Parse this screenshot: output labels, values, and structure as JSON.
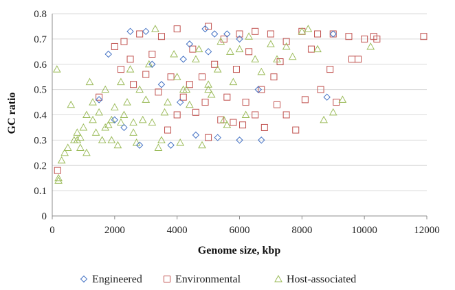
{
  "chart_data": {
    "type": "scatter",
    "title": "",
    "xlabel": "Genome size, kbp",
    "ylabel": "GC ratio",
    "xlim": [
      0,
      12000
    ],
    "ylim": [
      0,
      0.8
    ],
    "x_ticks": [
      "0",
      "2000",
      "4000",
      "6000",
      "8000",
      "10000",
      "12000"
    ],
    "y_ticks": [
      "0",
      "0.1",
      "0.2",
      "0.3",
      "0.4",
      "0.5",
      "0.6",
      "0.7",
      "0.8"
    ],
    "grid": "horizontal",
    "legend_position": "bottom",
    "series": [
      {
        "name": "Engineered",
        "marker": "diamond",
        "color": "#4472C4",
        "points": [
          [
            1800,
            0.64
          ],
          [
            2500,
            0.73
          ],
          [
            3000,
            0.73
          ],
          [
            4200,
            0.62
          ],
          [
            4900,
            0.74
          ],
          [
            5000,
            0.65
          ],
          [
            5200,
            0.72
          ],
          [
            5600,
            0.72
          ],
          [
            6000,
            0.7
          ],
          [
            6600,
            0.5
          ],
          [
            6700,
            0.3
          ],
          [
            6000,
            0.3
          ],
          [
            5300,
            0.31
          ],
          [
            4600,
            0.32
          ],
          [
            3800,
            0.28
          ],
          [
            2800,
            0.28
          ],
          [
            2000,
            0.38
          ],
          [
            1500,
            0.46
          ],
          [
            3200,
            0.6
          ],
          [
            4100,
            0.45
          ],
          [
            8800,
            0.47
          ],
          [
            9000,
            0.72
          ],
          [
            2300,
            0.35
          ],
          [
            3500,
            0.52
          ],
          [
            4400,
            0.68
          ]
        ]
      },
      {
        "name": "Environmental",
        "marker": "square",
        "color": "#C0504D",
        "points": [
          [
            170,
            0.18
          ],
          [
            1500,
            0.47
          ],
          [
            2000,
            0.67
          ],
          [
            2300,
            0.69
          ],
          [
            2800,
            0.72
          ],
          [
            3500,
            0.71
          ],
          [
            4000,
            0.74
          ],
          [
            4500,
            0.66
          ],
          [
            5000,
            0.75
          ],
          [
            5500,
            0.7
          ],
          [
            6000,
            0.72
          ],
          [
            6500,
            0.73
          ],
          [
            7000,
            0.72
          ],
          [
            7500,
            0.69
          ],
          [
            8000,
            0.73
          ],
          [
            8500,
            0.72
          ],
          [
            9000,
            0.72
          ],
          [
            9500,
            0.71
          ],
          [
            9800,
            0.62
          ],
          [
            10000,
            0.7
          ],
          [
            10300,
            0.71
          ],
          [
            11900,
            0.71
          ],
          [
            9100,
            0.45
          ],
          [
            8600,
            0.5
          ],
          [
            7800,
            0.34
          ],
          [
            7500,
            0.4
          ],
          [
            7200,
            0.44
          ],
          [
            6800,
            0.35
          ],
          [
            6500,
            0.4
          ],
          [
            6200,
            0.45
          ],
          [
            5800,
            0.37
          ],
          [
            5400,
            0.38
          ],
          [
            5000,
            0.31
          ],
          [
            4600,
            0.41
          ],
          [
            4200,
            0.47
          ],
          [
            3800,
            0.55
          ],
          [
            3400,
            0.49
          ],
          [
            3000,
            0.56
          ],
          [
            2600,
            0.52
          ],
          [
            2200,
            0.58
          ],
          [
            4800,
            0.55
          ],
          [
            5200,
            0.6
          ],
          [
            6300,
            0.65
          ],
          [
            7100,
            0.55
          ],
          [
            8100,
            0.46
          ],
          [
            8900,
            0.58
          ],
          [
            9600,
            0.62
          ],
          [
            10400,
            0.7
          ],
          [
            4000,
            0.4
          ],
          [
            5600,
            0.47
          ],
          [
            6700,
            0.5
          ],
          [
            3200,
            0.64
          ],
          [
            2500,
            0.62
          ],
          [
            4400,
            0.52
          ],
          [
            5900,
            0.58
          ],
          [
            7300,
            0.61
          ],
          [
            8300,
            0.66
          ],
          [
            3700,
            0.34
          ],
          [
            4900,
            0.45
          ],
          [
            6100,
            0.36
          ]
        ]
      },
      {
        "name": "Host-associated",
        "marker": "triangle",
        "color": "#9BBB59",
        "points": [
          [
            150,
            0.58
          ],
          [
            200,
            0.15
          ],
          [
            200,
            0.14
          ],
          [
            300,
            0.22
          ],
          [
            400,
            0.25
          ],
          [
            500,
            0.27
          ],
          [
            600,
            0.44
          ],
          [
            700,
            0.3
          ],
          [
            800,
            0.33
          ],
          [
            900,
            0.27
          ],
          [
            1000,
            0.35
          ],
          [
            1100,
            0.4
          ],
          [
            1200,
            0.53
          ],
          [
            1300,
            0.38
          ],
          [
            1500,
            0.41
          ],
          [
            1700,
            0.35
          ],
          [
            1900,
            0.3
          ],
          [
            2000,
            0.43
          ],
          [
            2200,
            0.37
          ],
          [
            2400,
            0.45
          ],
          [
            2600,
            0.33
          ],
          [
            2800,
            0.5
          ],
          [
            3000,
            0.46
          ],
          [
            3300,
            0.74
          ],
          [
            3500,
            0.3
          ],
          [
            3700,
            0.45
          ],
          [
            4000,
            0.55
          ],
          [
            4300,
            0.5
          ],
          [
            4600,
            0.62
          ],
          [
            5000,
            0.52
          ],
          [
            5300,
            0.58
          ],
          [
            5600,
            0.36
          ],
          [
            6000,
            0.66
          ],
          [
            6500,
            0.62
          ],
          [
            7000,
            0.68
          ],
          [
            7500,
            0.67
          ],
          [
            8000,
            0.73
          ],
          [
            8500,
            0.66
          ],
          [
            8700,
            0.38
          ],
          [
            9000,
            0.41
          ],
          [
            9300,
            0.46
          ],
          [
            10200,
            0.67
          ],
          [
            8200,
            0.74
          ],
          [
            7200,
            0.62
          ],
          [
            6200,
            0.4
          ],
          [
            5500,
            0.38
          ],
          [
            4800,
            0.28
          ],
          [
            4100,
            0.29
          ],
          [
            3400,
            0.27
          ],
          [
            2700,
            0.29
          ],
          [
            2100,
            0.28
          ],
          [
            1600,
            0.3
          ],
          [
            1100,
            0.25
          ],
          [
            800,
            0.3
          ],
          [
            1400,
            0.33
          ],
          [
            1800,
            0.36
          ],
          [
            2300,
            0.4
          ],
          [
            2900,
            0.38
          ],
          [
            3600,
            0.41
          ],
          [
            4400,
            0.44
          ],
          [
            5100,
            0.48
          ],
          [
            5800,
            0.53
          ],
          [
            6700,
            0.57
          ],
          [
            7700,
            0.63
          ],
          [
            2500,
            0.58
          ],
          [
            3100,
            0.6
          ],
          [
            3900,
            0.64
          ],
          [
            4700,
            0.66
          ],
          [
            5400,
            0.69
          ],
          [
            6300,
            0.71
          ],
          [
            1300,
            0.45
          ],
          [
            1700,
            0.5
          ],
          [
            2200,
            0.53
          ],
          [
            900,
            0.31
          ],
          [
            1900,
            0.38
          ],
          [
            2600,
            0.37
          ],
          [
            3200,
            0.37
          ],
          [
            4200,
            0.5
          ],
          [
            5000,
            0.5
          ],
          [
            5700,
            0.65
          ]
        ]
      }
    ]
  }
}
